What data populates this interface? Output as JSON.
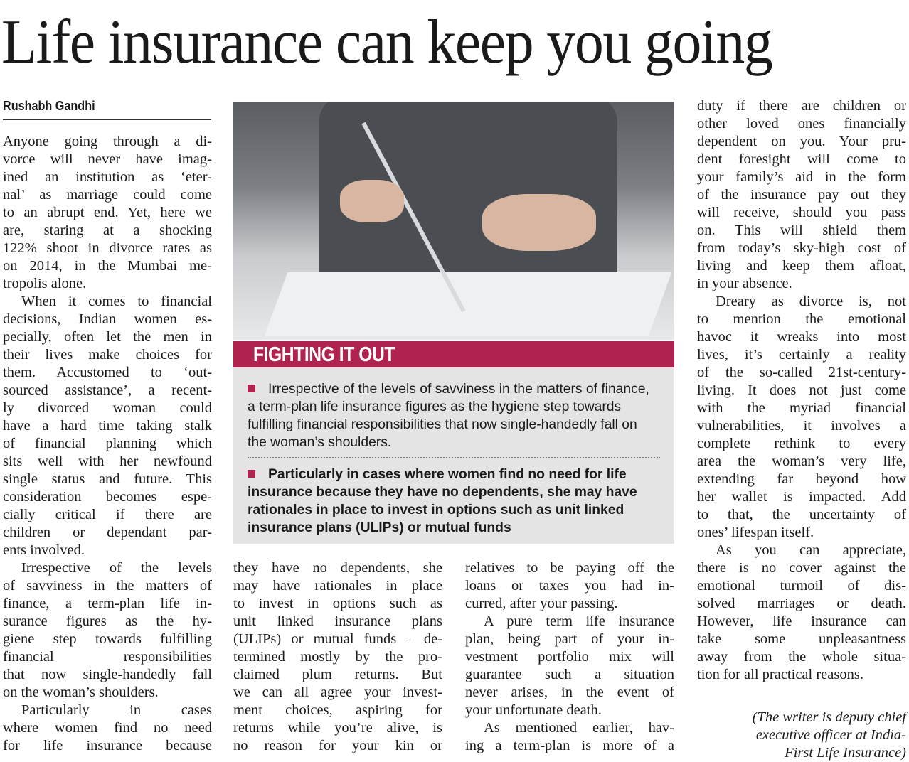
{
  "headline": "Life insurance can keep you going",
  "byline": "Rushabh Gandhi",
  "photo": {
    "description_icon": "photo-woman-signing-document"
  },
  "box": {
    "title": "FIGHTING IT OUT",
    "accent": "#b0234f",
    "bullets": [
      "Irrespective of the levels of savviness in the matters of finance, a term-plan life insurance figures as the hygiene step towards fulfilling financial responsibilities that now single-handedly fall on the woman’s shoulders.",
      "Particularly in cases where women find no need for life insurance because they have no dependents, she may have rationales in place to invest in options such as unit linked insurance plans (ULIPs) or mutual funds"
    ]
  },
  "columns": [
    {
      "paragraphs": [
        {
          "indent": false,
          "lines": [
            "Anyone going through a di-",
            "vorce will never have imag-",
            "ined an institution as ‘eter-",
            "nal’ as marriage could come",
            "to an abrupt end. Yet, here we",
            "are, staring at a shocking",
            "122% shoot in divorce rates as",
            "on 2014, in the Mumbai me-",
            "tropolis alone."
          ]
        },
        {
          "indent": true,
          "lines": [
            "When it comes to financial",
            "decisions, Indian women es-",
            "pecially, often let the men in",
            "their lives make choices for",
            "them. Accustomed to ‘out-",
            "sourced assistance’, a recent-",
            "ly divorced woman could",
            "have a hard time taking stalk",
            "of financial planning which",
            "sits well with her newfound",
            "single status and future. This",
            "consideration becomes espe-",
            "cially critical if there are",
            "children or dependant par-",
            "ents involved."
          ]
        },
        {
          "indent": true,
          "lines": [
            "Irrespective of the levels",
            "of savviness in the matters of",
            "finance, a term-plan life in-",
            "surance figures as the hy-",
            "giene step towards fulfilling",
            "financial responsibilities",
            "that now single-handedly fall",
            "on the woman’s shoulders."
          ]
        },
        {
          "indent": true,
          "cont": true,
          "lines": [
            "Particularly in cases",
            "where women find no need",
            "for life insurance because"
          ]
        }
      ]
    },
    {
      "paragraphs": [
        {
          "indent": false,
          "lines": [
            "they have no dependents, she",
            "may have rationales in place",
            "to invest in options such as",
            "unit linked insurance plans",
            "(ULIPs) or mutual funds – de-",
            "termined mostly by the pro-",
            "claimed plum returns. But",
            "we can all agree your invest-",
            "ment choices, aspiring for",
            "returns while you’re alive, is",
            "no reason for your kin or"
          ],
          "cont": true
        }
      ]
    },
    {
      "paragraphs": [
        {
          "indent": false,
          "lines": [
            "relatives to be paying off the",
            "loans or taxes you had in-",
            "curred, after your passing."
          ]
        },
        {
          "indent": true,
          "lines": [
            "A pure term life insurance",
            "plan, being part of your in-",
            "vestment portfolio mix will",
            "guarantee such a situation",
            "never arises, in the event of",
            "your unfortunate death."
          ]
        },
        {
          "indent": true,
          "cont": true,
          "lines": [
            "As mentioned earlier, hav-",
            "ing a term-plan is more of a"
          ]
        }
      ]
    },
    {
      "paragraphs": [
        {
          "indent": false,
          "lines": [
            "duty if there are children or",
            "other loved ones financially",
            "dependent on you. Your pru-",
            "dent foresight will come to",
            "your family’s aid in the form",
            "of the insurance pay out they",
            "will receive, should you pass",
            "on. This will shield them",
            "from today’s sky-high cost of",
            "living and keep them afloat,",
            "in your absence."
          ]
        },
        {
          "indent": true,
          "lines": [
            "Dreary as divorce is, not",
            "to mention the emotional",
            "havoc it wreaks into most",
            "lives, it’s certainly a reality",
            "of the so-called 21st-century-",
            "living. It does not just come",
            "with the myriad financial",
            "vulnerabilities, it involves a",
            "complete rethink to every",
            "area the woman’s very life,",
            "extending far beyond how",
            "her wallet is impacted. Add",
            "to that, the uncertainty of",
            "ones’ lifespan itself."
          ]
        },
        {
          "indent": true,
          "lines": [
            "As you can appreciate,",
            "there is no cover against the",
            "emotional turmoil of dis-",
            "solved marriages or death.",
            "However, life insurance can",
            "take some unpleasantness",
            "away from the whole situa-",
            "tion for all practical reasons."
          ]
        }
      ]
    }
  ],
  "author_note": [
    "(The writer is deputy chief",
    "executive officer at India-",
    "First Life Insurance)"
  ]
}
